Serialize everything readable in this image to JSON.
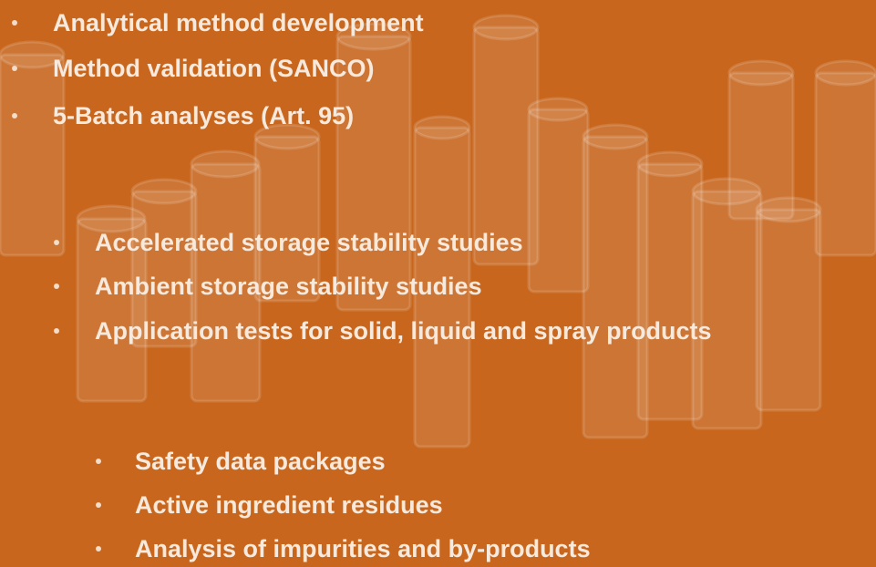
{
  "lists": [
    {
      "items": [
        "Analytical method development",
        "Method validation (SANCO)",
        "5-Batch analyses (Art. 95)"
      ]
    },
    {
      "items": [
        "Accelerated storage stability studies",
        "Ambient storage stability studies",
        "Application tests for solid, liquid and spray products"
      ]
    },
    {
      "items": [
        "Safety data packages",
        "Active ingredient residues",
        "Analysis of impurities and by-products"
      ]
    }
  ]
}
